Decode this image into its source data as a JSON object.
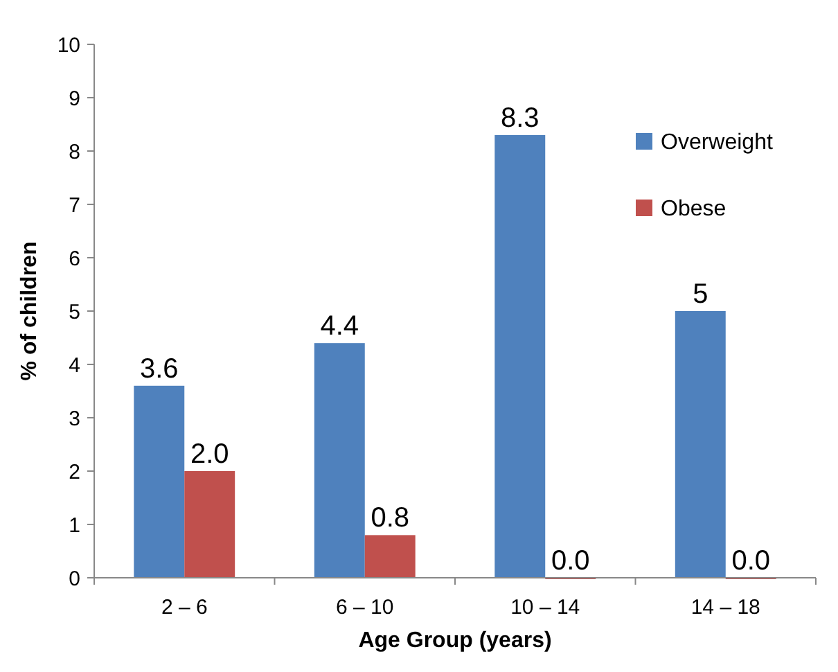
{
  "chart_data": {
    "type": "bar",
    "xlabel": "Age Group (years)",
    "ylabel": "% of children",
    "categories": [
      "2 – 6",
      "6 – 10",
      "10 – 14",
      "14 – 18"
    ],
    "series": [
      {
        "name": "Overweight",
        "color": "#4f81bd",
        "values": [
          3.6,
          4.4,
          8.3,
          5
        ],
        "value_labels": [
          "3.6",
          "4.4",
          "8.3",
          "5"
        ]
      },
      {
        "name": "Obese",
        "color": "#c0504d",
        "values": [
          2,
          0.8,
          0,
          0
        ],
        "value_labels": [
          "2.0",
          "0.8",
          "0.0",
          "0.0"
        ]
      }
    ],
    "ylim": [
      0,
      10
    ],
    "yticks": [
      0,
      1,
      2,
      3,
      4,
      5,
      6,
      7,
      8,
      9,
      10
    ],
    "grid": false,
    "legend": "top right"
  }
}
